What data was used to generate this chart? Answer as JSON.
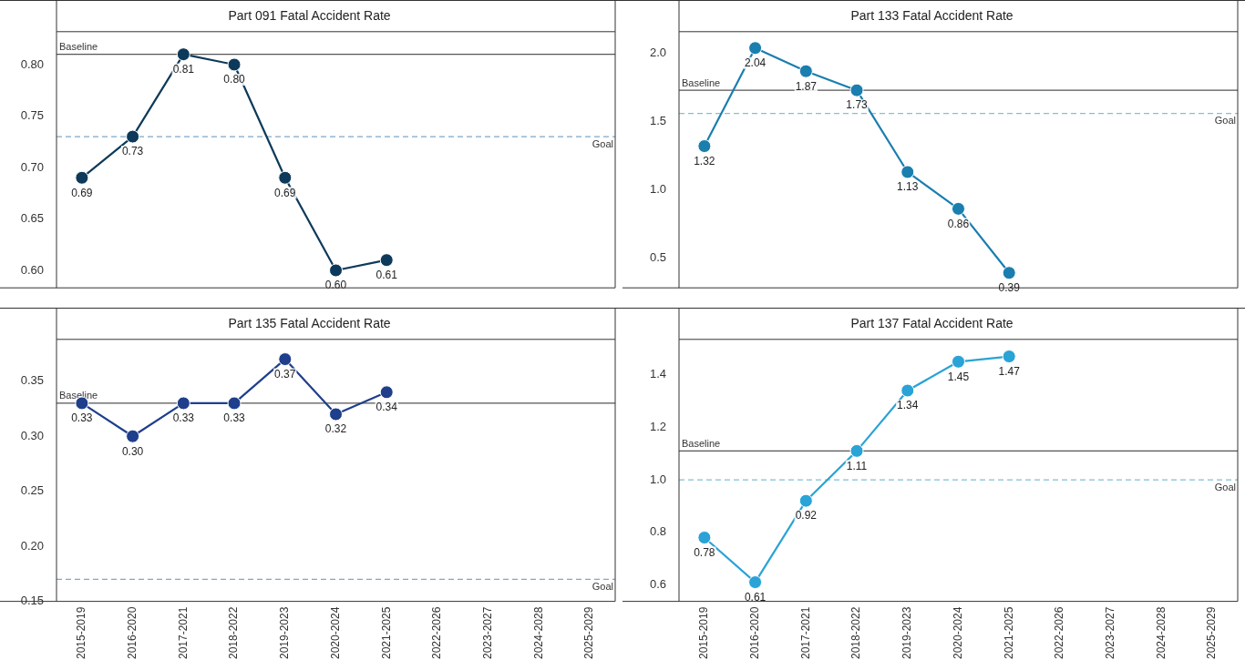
{
  "chart_data": [
    {
      "type": "line",
      "title": "Part 091 Fatal Accident Rate",
      "categories": [
        null,
        null,
        null,
        null,
        null,
        null,
        null,
        null,
        null,
        null,
        null
      ],
      "series": [
        {
          "color": "#0d3a5a",
          "values": [
            0.69,
            0.73,
            0.81,
            0.8,
            0.69,
            0.6,
            0.61,
            null,
            null,
            null,
            null
          ],
          "value_labels": [
            "0.69",
            "0.73",
            "0.81",
            "0.80",
            "0.69",
            "0.60",
            "0.61",
            null,
            null,
            null,
            null
          ]
        }
      ],
      "ylim": [
        0.583,
        0.832
      ],
      "yticks": [
        {
          "value": 0.6,
          "label": "0.60"
        },
        {
          "value": 0.65,
          "label": "0.65"
        },
        {
          "value": 0.7,
          "label": "0.70"
        },
        {
          "value": 0.75,
          "label": "0.75"
        },
        {
          "value": 0.8,
          "label": "0.80"
        }
      ],
      "ref_lines": [
        {
          "axis": "y",
          "value": 0.81,
          "label": "Baseline",
          "color": "#555555",
          "line_style": "solid"
        },
        {
          "axis": "y",
          "value": 0.73,
          "label": "Goal",
          "color": "#7fa7c9",
          "line_style": "dashed"
        }
      ],
      "marker": "circle",
      "grid": false,
      "tick_labels": "y"
    },
    {
      "type": "line",
      "title": "Part 133 Fatal Accident Rate",
      "categories": [
        null,
        null,
        null,
        null,
        null,
        null,
        null,
        null,
        null,
        null,
        null
      ],
      "series": [
        {
          "color": "#1a7eaf",
          "values": [
            1.32,
            2.04,
            1.87,
            1.73,
            1.13,
            0.86,
            0.39,
            null,
            null,
            null,
            null
          ],
          "value_labels": [
            "1.32",
            "2.04",
            "1.87",
            "1.73",
            "1.13",
            "0.86",
            "0.39",
            null,
            null,
            null,
            null
          ]
        }
      ],
      "ylim": [
        0.28,
        2.16
      ],
      "yticks": [
        {
          "value": 0.5,
          "label": "0.5"
        },
        {
          "value": 1,
          "label": "1.0"
        },
        {
          "value": 1.5,
          "label": "1.5"
        },
        {
          "value": 2,
          "label": "2.0"
        }
      ],
      "ref_lines": [
        {
          "axis": "y",
          "value": 1.73,
          "label": "Baseline",
          "color": "#555555",
          "line_style": "solid"
        },
        {
          "axis": "y",
          "value": 1.56,
          "label": "Goal",
          "color": "#7fc0d6",
          "line_style": "dashed"
        }
      ],
      "marker": "circle",
      "grid": false,
      "tick_labels": "y"
    },
    {
      "type": "line",
      "title": "Part 135 Fatal Accident Rate",
      "categories": [
        "2015-2019",
        "2016-2020",
        "2017-2021",
        "2018-2022",
        "2019-2023",
        "2020-2024",
        "2021-2025",
        "2022-2026",
        "2023-2027",
        "2024-2028",
        "2025-2029"
      ],
      "series": [
        {
          "color": "#1f3f8c",
          "values": [
            0.33,
            0.3,
            0.33,
            0.33,
            0.37,
            0.32,
            0.34,
            null,
            null,
            null,
            null
          ],
          "value_labels": [
            "0.33",
            "0.30",
            "0.33",
            "0.33",
            "0.37",
            "0.32",
            "0.34",
            null,
            null,
            null,
            null
          ]
        }
      ],
      "ylim": [
        0.15,
        0.388
      ],
      "yticks": [
        {
          "value": 0.15,
          "label": "0.15"
        },
        {
          "value": 0.2,
          "label": "0.20"
        },
        {
          "value": 0.25,
          "label": "0.25"
        },
        {
          "value": 0.3,
          "label": "0.30"
        },
        {
          "value": 0.35,
          "label": "0.35"
        }
      ],
      "ref_lines": [
        {
          "axis": "y",
          "value": 0.33,
          "label": "Baseline",
          "color": "#555555",
          "line_style": "solid"
        },
        {
          "axis": "y",
          "value": 0.17,
          "label": "Goal",
          "color": "#7fa7c9",
          "line_style": "dashed"
        }
      ],
      "marker": "circle",
      "grid": false
    },
    {
      "type": "line",
      "title": "Part 137 Fatal Accident Rate",
      "categories": [
        "2015-2019",
        "2016-2020",
        "2017-2021",
        "2018-2022",
        "2019-2023",
        "2020-2024",
        "2021-2025",
        "2022-2026",
        "2023-2027",
        "2024-2028",
        "2025-2029"
      ],
      "series": [
        {
          "color": "#2aa3d6",
          "values": [
            0.78,
            0.61,
            0.92,
            1.11,
            1.34,
            1.45,
            1.47,
            null,
            null,
            null,
            null
          ],
          "value_labels": [
            "0.78",
            "0.61",
            "0.92",
            "1.11",
            "1.34",
            "1.45",
            "1.47",
            null,
            null,
            null,
            null
          ]
        }
      ],
      "ylim": [
        0.537,
        1.535
      ],
      "yticks": [
        {
          "value": 0.6,
          "label": "0.6"
        },
        {
          "value": 0.8,
          "label": "0.8"
        },
        {
          "value": 1,
          "label": "1.0"
        },
        {
          "value": 1.2,
          "label": "1.2"
        },
        {
          "value": 1.4,
          "label": "1.4"
        }
      ],
      "ref_lines": [
        {
          "axis": "y",
          "value": 1.11,
          "label": "Baseline",
          "color": "#555555",
          "line_style": "solid"
        },
        {
          "axis": "y",
          "value": 1.0,
          "label": "Goal",
          "color": "#7fc0d6",
          "line_style": "dashed"
        }
      ],
      "marker": "circle",
      "grid": false
    }
  ]
}
